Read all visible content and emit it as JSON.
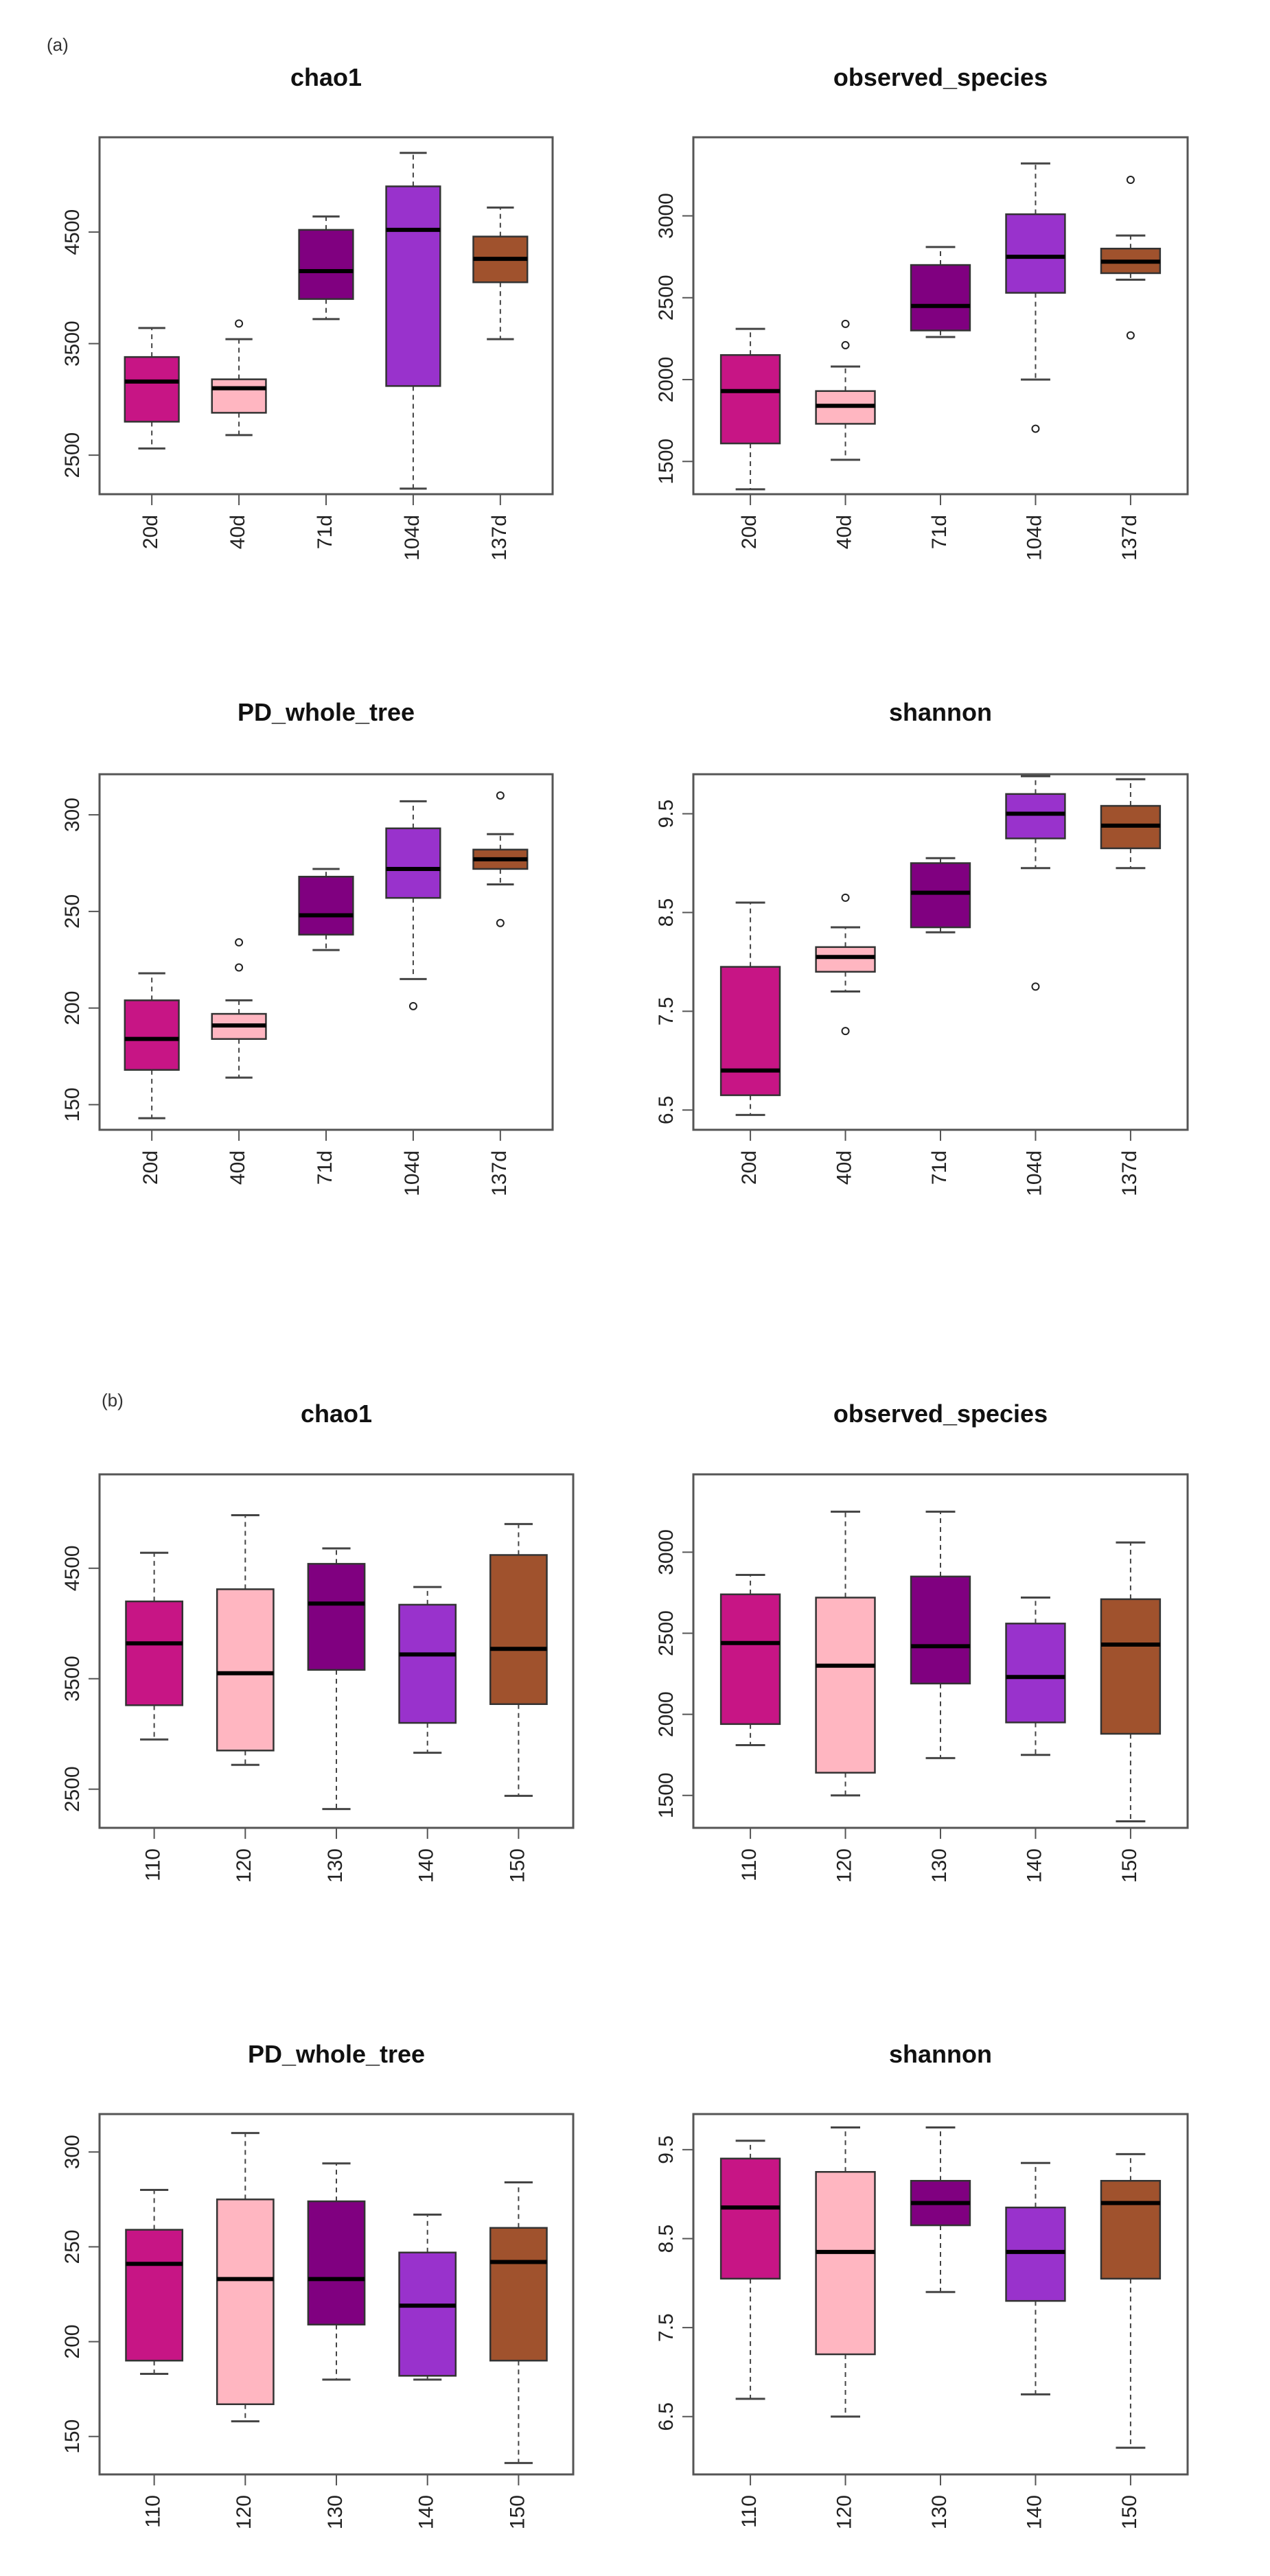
{
  "figure": {
    "panel_a_label": "(a)",
    "panel_b_label": "(b)"
  },
  "colors": {
    "box_colors": [
      "#c71585",
      "#ffb6c1",
      "#800080",
      "#9932cc",
      "#a0522d"
    ],
    "frame": "#555555",
    "whisker": "#444444",
    "median": "#000000"
  },
  "chart_data": [
    {
      "type": "boxplot",
      "panel": "(a)",
      "title": "chao1",
      "categories": [
        "20d",
        "40d",
        "71d",
        "104d",
        "137d"
      ],
      "ylim": [
        2150,
        5350
      ],
      "yticks": [
        2500,
        3500,
        4500
      ],
      "boxes": [
        {
          "low": 2560,
          "q1": 2800,
          "median": 3160,
          "q3": 3380,
          "high": 3640,
          "outliers": []
        },
        {
          "low": 2680,
          "q1": 2880,
          "median": 3100,
          "q3": 3180,
          "high": 3540,
          "outliers": [
            3680
          ]
        },
        {
          "low": 3720,
          "q1": 3900,
          "median": 4150,
          "q3": 4520,
          "high": 4640,
          "outliers": []
        },
        {
          "low": 2200,
          "q1": 3120,
          "median": 4520,
          "q3": 4910,
          "high": 5210,
          "outliers": []
        },
        {
          "low": 3540,
          "q1": 4050,
          "median": 4260,
          "q3": 4460,
          "high": 4720,
          "outliers": []
        }
      ]
    },
    {
      "type": "boxplot",
      "panel": "(a)",
      "title": "observed_species",
      "categories": [
        "20d",
        "40d",
        "71d",
        "104d",
        "137d"
      ],
      "ylim": [
        1300,
        3480
      ],
      "yticks": [
        1500,
        2000,
        2500,
        3000
      ],
      "boxes": [
        {
          "low": 1330,
          "q1": 1610,
          "median": 1930,
          "q3": 2150,
          "high": 2310,
          "outliers": []
        },
        {
          "low": 1510,
          "q1": 1730,
          "median": 1840,
          "q3": 1930,
          "high": 2080,
          "outliers": [
            2210,
            2340
          ]
        },
        {
          "low": 2260,
          "q1": 2300,
          "median": 2450,
          "q3": 2700,
          "high": 2810,
          "outliers": []
        },
        {
          "low": 2000,
          "q1": 2530,
          "median": 2750,
          "q3": 3010,
          "high": 3320,
          "outliers": [
            1700
          ]
        },
        {
          "low": 2610,
          "q1": 2650,
          "median": 2720,
          "q3": 2800,
          "high": 2880,
          "outliers": [
            2270,
            3220
          ]
        }
      ]
    },
    {
      "type": "boxplot",
      "panel": "(a)",
      "title": "PD_whole_tree",
      "categories": [
        "20d",
        "40d",
        "71d",
        "104d",
        "137d"
      ],
      "ylim": [
        137,
        321
      ],
      "yticks": [
        150,
        200,
        250,
        300
      ],
      "boxes": [
        {
          "low": 143,
          "q1": 168,
          "median": 184,
          "q3": 204,
          "high": 218,
          "outliers": []
        },
        {
          "low": 164,
          "q1": 184,
          "median": 191,
          "q3": 197,
          "high": 204,
          "outliers": [
            221,
            234
          ]
        },
        {
          "low": 230,
          "q1": 238,
          "median": 248,
          "q3": 268,
          "high": 272,
          "outliers": []
        },
        {
          "low": 215,
          "q1": 257,
          "median": 272,
          "q3": 293,
          "high": 307,
          "outliers": [
            201
          ]
        },
        {
          "low": 264,
          "q1": 272,
          "median": 277,
          "q3": 282,
          "high": 290,
          "outliers": [
            244,
            310
          ]
        }
      ]
    },
    {
      "type": "boxplot",
      "panel": "(a)",
      "title": "shannon",
      "categories": [
        "20d",
        "40d",
        "71d",
        "104d",
        "137d"
      ],
      "ylim": [
        6.3,
        9.9
      ],
      "yticks": [
        6.5,
        7.5,
        8.5,
        9.5
      ],
      "boxes": [
        {
          "low": 6.45,
          "q1": 6.65,
          "median": 6.9,
          "q3": 7.95,
          "high": 8.6,
          "outliers": []
        },
        {
          "low": 7.7,
          "q1": 7.9,
          "median": 8.05,
          "q3": 8.15,
          "high": 8.35,
          "outliers": [
            7.3,
            8.65
          ]
        },
        {
          "low": 8.3,
          "q1": 8.35,
          "median": 8.7,
          "q3": 9.0,
          "high": 9.05,
          "outliers": []
        },
        {
          "low": 8.95,
          "q1": 9.25,
          "median": 9.5,
          "q3": 9.7,
          "high": 9.88,
          "outliers": [
            7.75
          ]
        },
        {
          "low": 8.95,
          "q1": 9.15,
          "median": 9.38,
          "q3": 9.58,
          "high": 9.85,
          "outliers": []
        }
      ]
    },
    {
      "type": "boxplot",
      "panel": "(b)",
      "title": "chao1",
      "categories": [
        "110",
        "120",
        "130",
        "140",
        "150"
      ],
      "ylim": [
        2150,
        5350
      ],
      "yticks": [
        2500,
        3500,
        4500
      ],
      "boxes": [
        {
          "low": 2950,
          "q1": 3260,
          "median": 3820,
          "q3": 4200,
          "high": 4640,
          "outliers": []
        },
        {
          "low": 2720,
          "q1": 2850,
          "median": 3550,
          "q3": 4310,
          "high": 4980,
          "outliers": []
        },
        {
          "low": 2320,
          "q1": 3580,
          "median": 4180,
          "q3": 4540,
          "high": 4680,
          "outliers": []
        },
        {
          "low": 2830,
          "q1": 3100,
          "median": 3720,
          "q3": 4170,
          "high": 4330,
          "outliers": []
        },
        {
          "low": 2440,
          "q1": 3270,
          "median": 3770,
          "q3": 4620,
          "high": 4900,
          "outliers": []
        }
      ]
    },
    {
      "type": "boxplot",
      "panel": "(b)",
      "title": "observed_species",
      "categories": [
        "110",
        "120",
        "130",
        "140",
        "150"
      ],
      "ylim": [
        1300,
        3480
      ],
      "yticks": [
        1500,
        2000,
        2500,
        3000
      ],
      "boxes": [
        {
          "low": 1810,
          "q1": 1940,
          "median": 2440,
          "q3": 2740,
          "high": 2860,
          "outliers": []
        },
        {
          "low": 1500,
          "q1": 1640,
          "median": 2300,
          "q3": 2720,
          "high": 3250,
          "outliers": []
        },
        {
          "low": 1730,
          "q1": 2190,
          "median": 2420,
          "q3": 2850,
          "high": 3250,
          "outliers": []
        },
        {
          "low": 1750,
          "q1": 1950,
          "median": 2230,
          "q3": 2560,
          "high": 2720,
          "outliers": []
        },
        {
          "low": 1340,
          "q1": 1880,
          "median": 2430,
          "q3": 2710,
          "high": 3060,
          "outliers": []
        }
      ]
    },
    {
      "type": "boxplot",
      "panel": "(b)",
      "title": "PD_whole_tree",
      "categories": [
        "110",
        "120",
        "130",
        "140",
        "150"
      ],
      "ylim": [
        130,
        320
      ],
      "yticks": [
        150,
        200,
        250,
        300
      ],
      "boxes": [
        {
          "low": 183,
          "q1": 190,
          "median": 241,
          "q3": 259,
          "high": 280,
          "outliers": []
        },
        {
          "low": 158,
          "q1": 167,
          "median": 233,
          "q3": 275,
          "high": 310,
          "outliers": []
        },
        {
          "low": 180,
          "q1": 209,
          "median": 233,
          "q3": 274,
          "high": 294,
          "outliers": []
        },
        {
          "low": 180,
          "q1": 182,
          "median": 219,
          "q3": 247,
          "high": 267,
          "outliers": []
        },
        {
          "low": 136,
          "q1": 190,
          "median": 242,
          "q3": 260,
          "high": 284,
          "outliers": []
        }
      ]
    },
    {
      "type": "boxplot",
      "panel": "(b)",
      "title": "shannon",
      "categories": [
        "110",
        "120",
        "130",
        "140",
        "150"
      ],
      "ylim": [
        5.85,
        9.9
      ],
      "yticks": [
        6.5,
        7.5,
        8.5,
        9.5
      ],
      "boxes": [
        {
          "low": 6.7,
          "q1": 8.05,
          "median": 8.85,
          "q3": 9.4,
          "high": 9.6,
          "outliers": []
        },
        {
          "low": 6.5,
          "q1": 7.2,
          "median": 8.35,
          "q3": 9.25,
          "high": 9.75,
          "outliers": []
        },
        {
          "low": 7.9,
          "q1": 8.65,
          "median": 8.9,
          "q3": 9.15,
          "high": 9.75,
          "outliers": []
        },
        {
          "low": 6.75,
          "q1": 7.8,
          "median": 8.35,
          "q3": 8.85,
          "high": 9.35,
          "outliers": []
        },
        {
          "low": 6.15,
          "q1": 8.05,
          "median": 8.9,
          "q3": 9.15,
          "high": 9.45,
          "outliers": []
        }
      ]
    }
  ]
}
